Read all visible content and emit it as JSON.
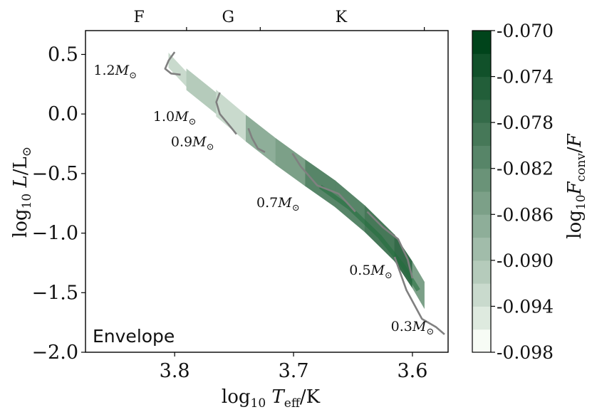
{
  "chart_data": {
    "type": "heatmap",
    "panel_label": "Envelope",
    "x_axis": {
      "label_parts": [
        "log",
        "10",
        " ",
        "T",
        "eff",
        "/K"
      ],
      "range": [
        3.875,
        3.57
      ],
      "inverted": true,
      "ticks": [
        3.8,
        3.7,
        3.6
      ],
      "tick_labels": [
        "3.8",
        "3.7",
        "3.6"
      ]
    },
    "y_axis": {
      "label_parts": [
        "log",
        "10",
        " ",
        "L",
        "/L",
        "⊙"
      ],
      "range": [
        -2.0,
        0.7
      ],
      "ticks": [
        0.5,
        0.0,
        -0.5,
        -1.0,
        -1.5,
        -2.0
      ],
      "tick_labels": [
        "0.5",
        "0.0",
        "−0.5",
        "−1.0",
        "−1.5",
        "−2.0"
      ]
    },
    "spectral_types": [
      {
        "label": "F",
        "teff": 3.83
      },
      {
        "label": "G",
        "teff": 3.755
      },
      {
        "label": "K",
        "teff": 3.66
      }
    ],
    "spectral_boundaries": [
      3.79,
      3.728,
      3.59
    ],
    "colorbar": {
      "label_parts": [
        "log",
        "10",
        "F",
        "conv",
        "/",
        "F"
      ],
      "min": -0.098,
      "max": -0.07,
      "levels": 14,
      "ticks": [
        -0.07,
        -0.074,
        -0.078,
        -0.082,
        -0.086,
        -0.09,
        -0.094,
        -0.098
      ],
      "tick_labels": [
        "-0.070",
        "-0.074",
        "-0.078",
        "-0.082",
        "-0.086",
        "-0.090",
        "-0.094",
        "-0.098"
      ],
      "low_color": "#f7fcf5",
      "high_color": "#00441b",
      "colormap": "Greens"
    },
    "band_segments": [
      {
        "teff_start": 3.805,
        "teff_end": 3.79,
        "logL_center": 0.38,
        "value": -0.093
      },
      {
        "teff_start": 3.79,
        "teff_end": 3.765,
        "logL_center": 0.2,
        "value": -0.092
      },
      {
        "teff_start": 3.765,
        "teff_end": 3.74,
        "logL_center": -0.02,
        "value": -0.094
      },
      {
        "teff_start": 3.74,
        "teff_end": 3.715,
        "logL_center": -0.22,
        "value": -0.088
      },
      {
        "teff_start": 3.715,
        "teff_end": 3.69,
        "logL_center": -0.41,
        "value": -0.086
      },
      {
        "teff_start": 3.69,
        "teff_end": 3.665,
        "logL_center": -0.58,
        "value": -0.082
      },
      {
        "teff_start": 3.665,
        "teff_end": 3.64,
        "logL_center": -0.76,
        "value": -0.081
      },
      {
        "teff_start": 3.64,
        "teff_end": 3.615,
        "logL_center": -1.0,
        "value": -0.079
      },
      {
        "teff_start": 3.615,
        "teff_end": 3.6,
        "logL_center": -1.25,
        "value": -0.078
      },
      {
        "teff_start": 3.6,
        "teff_end": 3.59,
        "logL_center": -1.45,
        "value": -0.085
      }
    ],
    "tracks": [
      {
        "mass": "1.2",
        "points": [
          [
            3.8,
            0.52
          ],
          [
            3.805,
            0.45
          ],
          [
            3.808,
            0.38
          ],
          [
            3.803,
            0.34
          ],
          [
            3.795,
            0.33
          ]
        ]
      },
      {
        "mass": "1.0",
        "points": [
          [
            3.762,
            0.18
          ],
          [
            3.765,
            0.1
          ],
          [
            3.762,
            0.0
          ],
          [
            3.752,
            -0.12
          ],
          [
            3.748,
            -0.17
          ]
        ]
      },
      {
        "mass": "0.9",
        "points": [
          [
            3.738,
            -0.12
          ],
          [
            3.735,
            -0.2
          ],
          [
            3.73,
            -0.29
          ],
          [
            3.724,
            -0.32
          ]
        ]
      },
      {
        "mass": "0.7",
        "points": [
          [
            3.701,
            -0.33
          ],
          [
            3.694,
            -0.44
          ],
          [
            3.68,
            -0.6
          ],
          [
            3.662,
            -0.67
          ],
          [
            3.648,
            -0.82
          ]
        ]
      },
      {
        "mass": "0.5",
        "points": [
          [
            3.638,
            -0.82
          ],
          [
            3.625,
            -0.95
          ],
          [
            3.612,
            -1.05
          ],
          [
            3.604,
            -1.22
          ],
          [
            3.6,
            -1.38
          ]
        ]
      },
      {
        "mass": "0.3",
        "points": [
          [
            3.615,
            -1.2
          ],
          [
            3.605,
            -1.48
          ],
          [
            3.592,
            -1.72
          ],
          [
            3.58,
            -1.79
          ],
          [
            3.573,
            -1.85
          ]
        ]
      }
    ],
    "track_color": "#808080",
    "mass_labels": [
      {
        "text": "1.2",
        "teff": 3.85,
        "logL": 0.33
      },
      {
        "text": "1.0",
        "teff": 3.8,
        "logL": -0.06
      },
      {
        "text": "0.9",
        "teff": 3.785,
        "logL": -0.27
      },
      {
        "text": "0.7",
        "teff": 3.713,
        "logL": -0.78
      },
      {
        "text": "0.5",
        "teff": 3.635,
        "logL": -1.35
      },
      {
        "text": "0.3",
        "teff": 3.6,
        "logL": -1.82
      }
    ],
    "mass_unit_parts": [
      "M",
      "⊙"
    ]
  }
}
